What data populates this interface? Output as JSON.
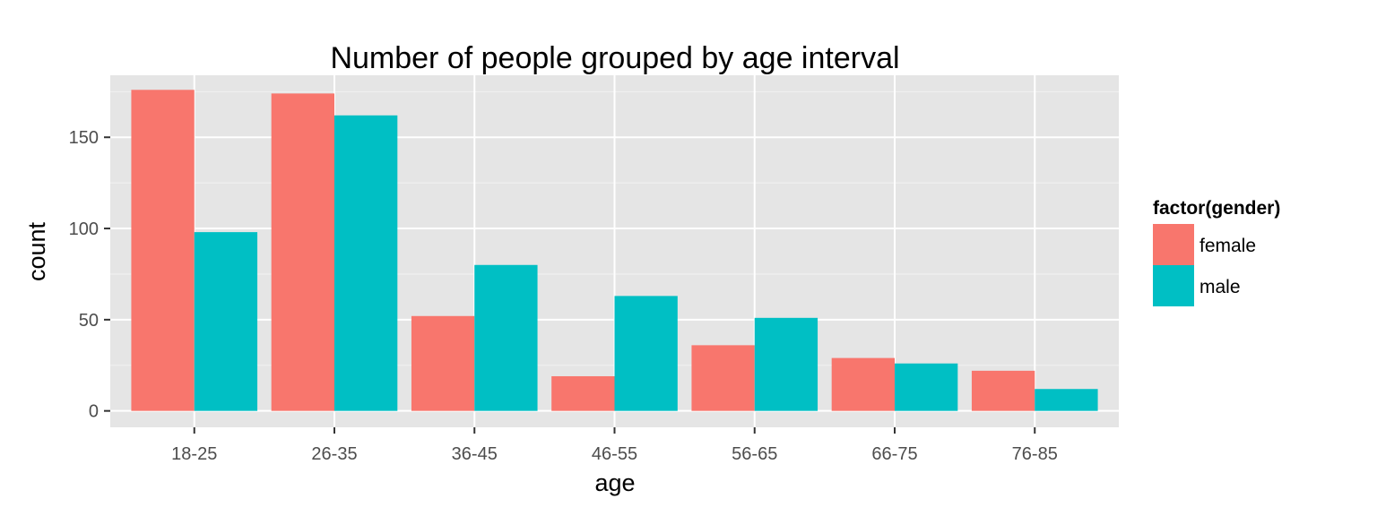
{
  "chart_data": {
    "type": "bar",
    "title": "Number of people grouped by age interval",
    "xlabel": "age",
    "ylabel": "count",
    "categories": [
      "18-25",
      "26-35",
      "36-45",
      "46-55",
      "56-65",
      "66-75",
      "76-85"
    ],
    "series": [
      {
        "name": "female",
        "color": "#F8766D",
        "values": [
          176,
          174,
          52,
          19,
          36,
          29,
          22
        ]
      },
      {
        "name": "male",
        "color": "#00BFC4",
        "values": [
          98,
          162,
          80,
          63,
          51,
          26,
          12
        ]
      }
    ],
    "yticks": [
      0,
      50,
      100,
      150
    ],
    "ylim": [
      -9,
      184
    ],
    "grid": true,
    "panel_background": "#E5E5E5",
    "legend": {
      "title": "factor(gender)",
      "position": "right"
    }
  }
}
